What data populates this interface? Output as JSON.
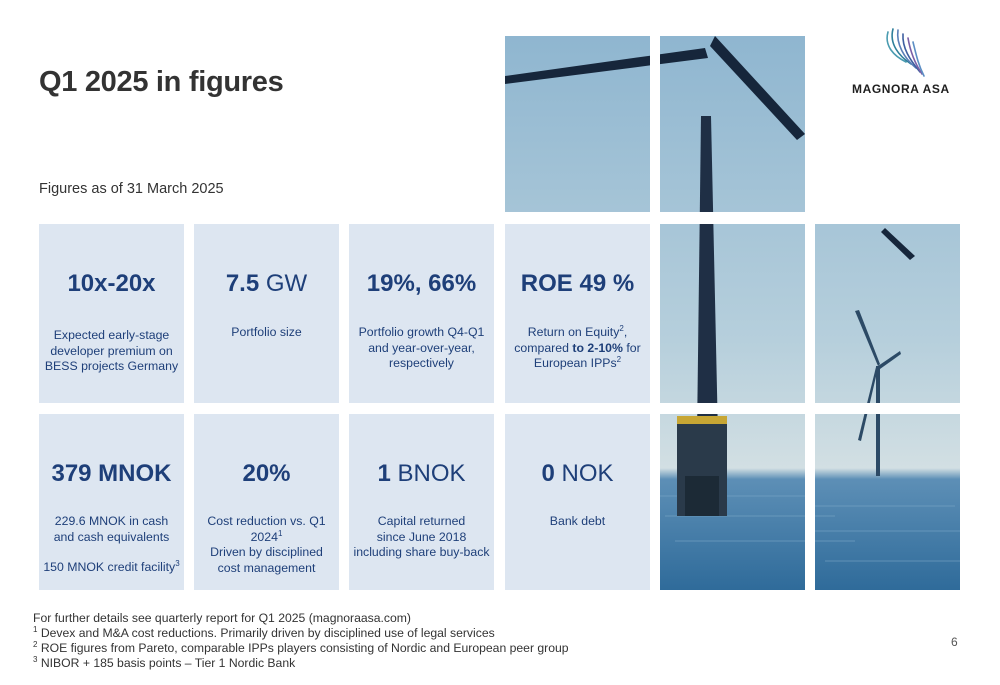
{
  "header": {
    "title": "Q1 2025 in figures",
    "subtitle": "Figures as of 31 March 2025"
  },
  "logo": {
    "text": "MAGNORA ASA",
    "icon": "magnora-swirl-logo"
  },
  "cards": [
    {
      "fig_bold": "10x-20x",
      "fig_unit": "",
      "desc_lines": [
        "Expected early-stage developer premium on BESS projects Germany"
      ]
    },
    {
      "fig_bold": "7.5",
      "fig_unit": " GW",
      "desc_lines": [
        "Portfolio size"
      ]
    },
    {
      "fig_bold": "19%, 66%",
      "fig_unit": "",
      "desc_lines": [
        "Portfolio growth Q4-Q1 and year-over-year, respectively"
      ]
    },
    {
      "fig_bold": "ROE 49 %",
      "fig_unit": "",
      "desc_a": "Return on Equity",
      "desc_a_sup": "2",
      "desc_b": ", compared ",
      "desc_bold": "to 2-10%",
      "desc_c": " for European IPPs",
      "desc_c_sup": "2"
    },
    {
      "fig_bold": "379 MNOK",
      "fig_unit": "",
      "desc_lines": [
        "229.6 MNOK in cash and cash equivalents"
      ],
      "desc_extra": "150 MNOK credit facility",
      "desc_extra_sup": "3"
    },
    {
      "fig_bold": "20%",
      "fig_unit": "",
      "desc_a": "Cost reduction vs. Q1 2024",
      "desc_a_sup": "1",
      "desc_b": "Driven by disciplined cost management"
    },
    {
      "fig_bold": "1",
      "fig_unit": " BNOK",
      "desc_lines": [
        "Capital returned",
        "since June 2018 including share buy-back"
      ]
    },
    {
      "fig_bold": "0",
      "fig_unit": " NOK",
      "desc_lines": [
        "Bank debt"
      ]
    }
  ],
  "footnotes": {
    "intro": "For further details see quarterly report for Q1 2025 (magnoraasa.com)",
    "notes": [
      {
        "num": "1",
        "text": "Devex and M&A cost reductions. Primarily driven by disciplined use of legal services"
      },
      {
        "num": "2",
        "text": "ROE figures from Pareto, comparable IPPs players consisting of Nordic and European peer group"
      },
      {
        "num": "3",
        "text": "NIBOR + 185 basis points – Tier 1 Nordic Bank"
      }
    ]
  },
  "page_number": "6",
  "colors": {
    "card_bg": "#dde6f1",
    "accent_blue": "#1e3f79",
    "sky_top": "#8fb6d0",
    "sky_horizon": "#c9dbe3",
    "sea": "#3d78a6"
  }
}
